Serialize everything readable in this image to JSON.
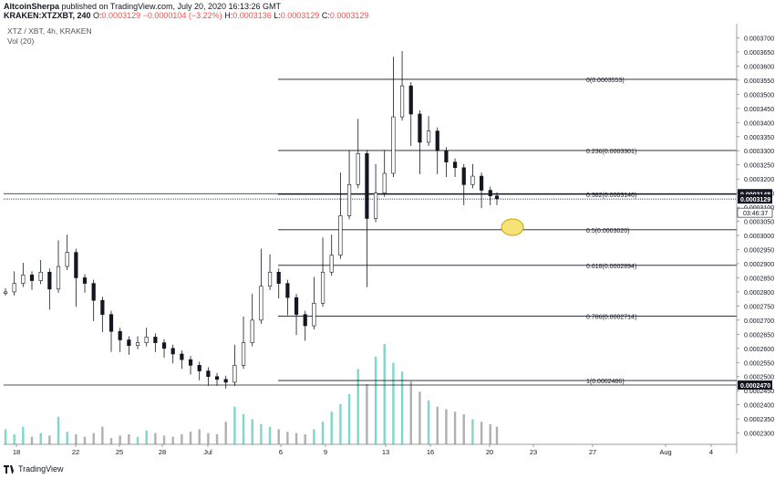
{
  "header": {
    "author": "AltcoinSherpa",
    "published": "published on TradingView.com, July 20, 2020 16:13:26 GMT",
    "symbol": "KRAKEN:XTZXBT, 240",
    "o_label": "O:",
    "o": "0.0003129",
    "change": "−0.0000104 (−3.22%)",
    "h_label": "H:",
    "h": "0.0003136",
    "l_label": "L:",
    "l": "0.0003129",
    "c_label": "C:",
    "c": "0.0003129"
  },
  "legend": {
    "pair": "XTZ / XBT, 4h, KRAKEN",
    "vol": "Vol (20)"
  },
  "footer": {
    "brand": "TradingView"
  },
  "colors": {
    "up": "#26a69a",
    "down": "#ef5350",
    "candle": "#131722",
    "grid": "#e8e8e8",
    "marker": "#f5e37a"
  },
  "chart_data": {
    "type": "line",
    "title": "XTZ / XBT, 4h, KRAKEN",
    "ylim": [
      0.000226,
      0.000375
    ],
    "y_ticks": [
      "0.0003700",
      "0.0003650",
      "0.0003600",
      "0.0003550",
      "0.0003500",
      "0.0003450",
      "0.0003400",
      "0.0003350",
      "0.0003300",
      "0.0003250",
      "0.0003200",
      "0.0003150",
      "0.0003100",
      "0.0003050",
      "0.0003000",
      "0.0002950",
      "0.0002900",
      "0.0002850",
      "0.0002800",
      "0.0002750",
      "0.0002700",
      "0.0002650",
      "0.0002600",
      "0.0002550",
      "0.0002500",
      "0.0002450",
      "0.0002400",
      "0.0002350",
      "0.0002300"
    ],
    "x_ticks": [
      "18",
      "22",
      "25",
      "28",
      "Jul",
      "6",
      "9",
      "13",
      "16",
      "20",
      "23",
      "27",
      "Aug",
      "4"
    ],
    "price_labels": [
      {
        "text": "0.0003148",
        "value": 0.0003148
      },
      {
        "text": "0.0003129",
        "value": 0.0003129
      },
      {
        "text": "0.0002470",
        "value": 0.000247
      }
    ],
    "countdown": "03:46:37",
    "fib_levels": [
      {
        "label": "0(0.0003553)",
        "value": 0.0003553
      },
      {
        "label": "0.236(0.0003301)",
        "value": 0.0003301
      },
      {
        "label": "0.382(0.0003146)",
        "value": 0.0003146
      },
      {
        "label": "0.5(0.0003020)",
        "value": 0.000302
      },
      {
        "label": "0.618(0.0002894)",
        "value": 0.0002894
      },
      {
        "label": "0.786(0.0002714)",
        "value": 0.0002714
      },
      {
        "label": "1(0.0002486)",
        "value": 0.0002486
      }
    ],
    "horizontal_lines": [
      0.0003148,
      0.0003129,
      0.000247
    ],
    "series": [
      {
        "name": "XTZ / XBT",
        "x_index": [
          0,
          4,
          8,
          12,
          16,
          20,
          24,
          28,
          32,
          36,
          40,
          44,
          48,
          52,
          56,
          60,
          64,
          68,
          72,
          76,
          80,
          84,
          88,
          92,
          96,
          100,
          104,
          108,
          112,
          116,
          120,
          124,
          128,
          132,
          136,
          140,
          144,
          148,
          152,
          156,
          160,
          164,
          168,
          172,
          176,
          180,
          184,
          188,
          192,
          196,
          200,
          204,
          208,
          212,
          216,
          220,
          223
        ],
        "values": [
          0.00028,
          0.000283,
          0.000286,
          0.000284,
          0.000287,
          0.000281,
          0.000289,
          0.000294,
          0.000285,
          0.000283,
          0.000277,
          0.000272,
          0.000266,
          0.000263,
          0.000261,
          0.000262,
          0.000264,
          0.000262,
          0.00026,
          0.000258,
          0.000256,
          0.000254,
          0.000252,
          0.00025,
          0.000249,
          0.000248,
          0.000254,
          0.000262,
          0.00027,
          0.000282,
          0.000287,
          0.000283,
          0.000278,
          0.000272,
          0.000268,
          0.000276,
          0.000287,
          0.000293,
          0.000307,
          0.000318,
          0.000329,
          0.000306,
          0.000315,
          0.000322,
          0.000342,
          0.000353,
          0.000343,
          0.000333,
          0.000337,
          0.00033,
          0.000326,
          0.000324,
          0.000318,
          0.000321,
          0.000316,
          0.000314,
          0.000313
        ]
      }
    ],
    "volume": [
      12,
      8,
      14,
      6,
      9,
      7,
      22,
      10,
      8,
      6,
      9,
      14,
      5,
      7,
      8,
      6,
      11,
      9,
      7,
      6,
      8,
      10,
      12,
      9,
      8,
      18,
      30,
      24,
      20,
      16,
      14,
      12,
      10,
      9,
      8,
      12,
      18,
      26,
      32,
      40,
      60,
      48,
      70,
      80,
      65,
      58,
      50,
      42,
      35,
      30,
      28,
      26,
      24,
      20,
      18,
      16,
      14
    ]
  }
}
